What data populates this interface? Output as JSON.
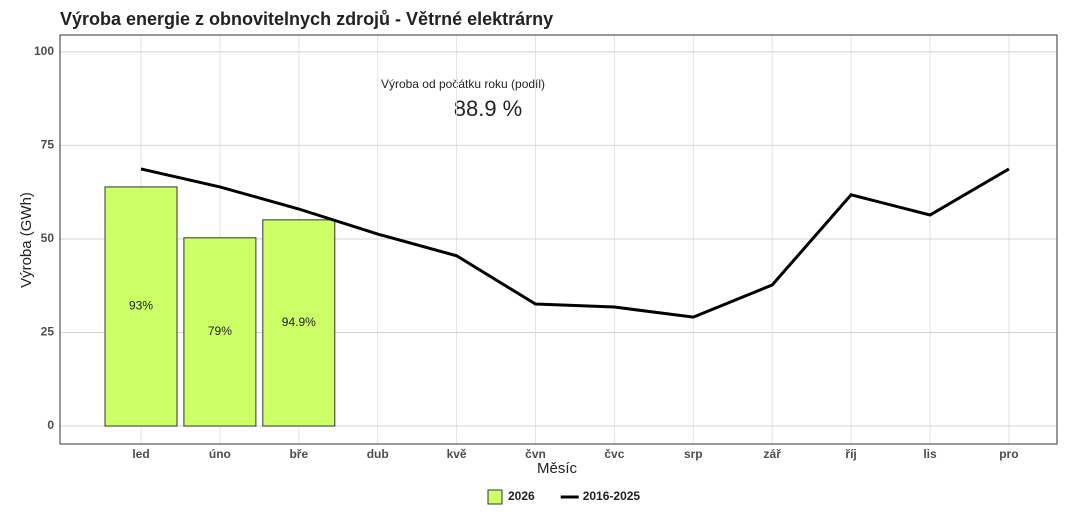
{
  "chart_data": {
    "type": "bar+line",
    "title": "Výroba energie z obnovitelnych zdrojů - Větrné elektrárny",
    "x_label": "Měsíc",
    "y_label": "Výroba (GWh)",
    "categories": [
      "led",
      "úno",
      "bře",
      "dub",
      "kvě",
      "čvn",
      "čvc",
      "srp",
      "zář",
      "říj",
      "lis",
      "pro"
    ],
    "series": [
      {
        "name": "2026",
        "type": "bar",
        "color": "#ccff66",
        "values": [
          63.9,
          50.3,
          55.1,
          null,
          null,
          null,
          null,
          null,
          null,
          null,
          null,
          null
        ]
      },
      {
        "name": "2016-2025",
        "type": "line",
        "color": "#000000",
        "values": [
          68.7,
          63.9,
          58.0,
          51.3,
          45.5,
          32.6,
          31.8,
          29.1,
          37.7,
          61.8,
          56.4,
          68.7
        ]
      }
    ],
    "bar_labels": {
      "values": [
        93,
        79,
        94.9
      ],
      "value_labels": [
        "93%",
        "79%",
        "94.9%"
      ]
    },
    "annotation": {
      "text": "Výroba od počátku roku (podíl)",
      "value": 88.9,
      "value_label": "88.9 %"
    },
    "ylim": [
      -4.8,
      104.5
    ],
    "yticks": [
      0,
      25,
      50,
      75,
      100
    ],
    "grid": true,
    "legend": "bottom"
  }
}
